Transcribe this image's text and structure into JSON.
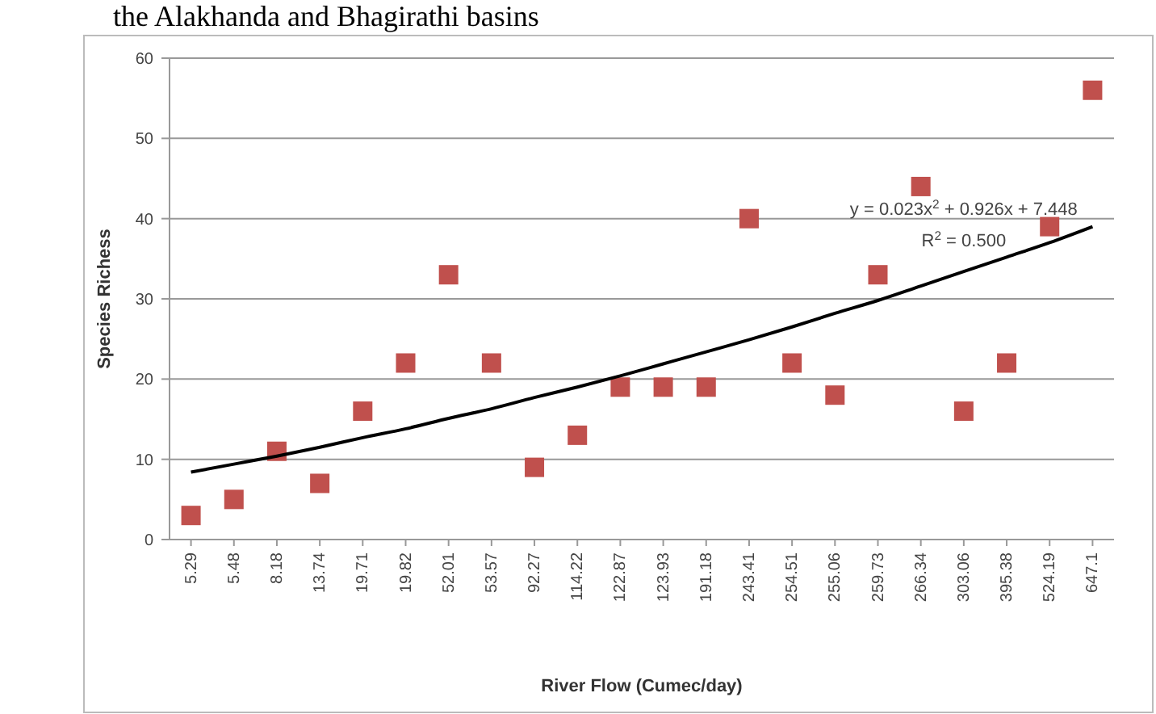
{
  "chart_data": {
    "type": "scatter",
    "title": "the Alakhanda and Bhagirathi basins",
    "xlabel": "River Flow (Cumec/day)",
    "ylabel": "Species Richess",
    "categories": [
      "5.29",
      "5.48",
      "8.18",
      "13.74",
      "19.71",
      "19.82",
      "52.01",
      "53.57",
      "92.27",
      "114.22",
      "122.87",
      "123.93",
      "191.18",
      "243.41",
      "254.51",
      "255.06",
      "259.73",
      "266.34",
      "303.06",
      "395.38",
      "524.19",
      "647.1"
    ],
    "series": [
      {
        "color": "#c0504d",
        "marker": "square",
        "values": [
          3,
          5,
          11,
          7,
          16,
          22,
          33,
          22,
          9,
          13,
          19,
          19,
          19,
          40,
          22,
          18,
          33,
          44,
          16,
          22,
          39,
          56
        ]
      },
      {
        "type": "line",
        "color": "#000000",
        "values": [
          8.4,
          9.4,
          10.4,
          11.5,
          12.7,
          13.8,
          15.1,
          16.3,
          17.7,
          19.0,
          20.4,
          21.9,
          23.4,
          24.9,
          26.5,
          28.2,
          29.8,
          31.6,
          33.4,
          35.2,
          37.0,
          39.0
        ]
      }
    ],
    "annotations": [
      "y = 0.023x$^{2}$ + 0.926x + 7.448",
      "R$^{2}$ = 0.500"
    ],
    "ylim": [
      0,
      60
    ],
    "yticks": [
      0,
      10,
      20,
      30,
      40,
      50,
      60
    ],
    "grid": "y"
  }
}
